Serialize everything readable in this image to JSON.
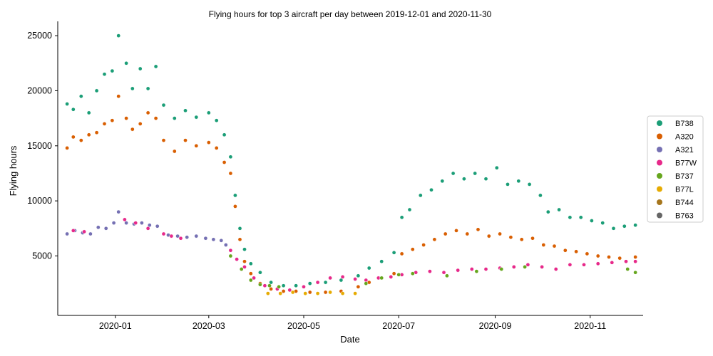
{
  "chart_data": {
    "type": "scatter",
    "title": "Flying hours for top 3 aircraft per day between 2019-12-01 and 2020-11-30",
    "xlabel": "Date",
    "ylabel": "Flying hours",
    "x_range": [
      "2019-11-25",
      "2020-12-05"
    ],
    "ylim": [
      -400,
      26300
    ],
    "x_ticks": [
      "2020-01-01",
      "2020-03-01",
      "2020-05-01",
      "2020-07-01",
      "2020-09-01",
      "2020-11-01"
    ],
    "x_tick_labels": [
      "2020-01",
      "2020-03",
      "2020-05",
      "2020-07",
      "2020-09",
      "2020-11"
    ],
    "y_ticks": [
      5000,
      10000,
      15000,
      20000,
      25000
    ],
    "y_tick_labels": [
      "5000",
      "10000",
      "15000",
      "20000",
      "25000"
    ],
    "grid": false,
    "legend_position": "right",
    "series": [
      {
        "name": "B738",
        "color": "#1b9e77",
        "points": [
          [
            "2019-12-01",
            18800
          ],
          [
            "2019-12-05",
            18300
          ],
          [
            "2019-12-10",
            19500
          ],
          [
            "2019-12-15",
            18000
          ],
          [
            "2019-12-20",
            20000
          ],
          [
            "2019-12-25",
            21500
          ],
          [
            "2019-12-30",
            21800
          ],
          [
            "2020-01-03",
            25000
          ],
          [
            "2020-01-08",
            22500
          ],
          [
            "2020-01-12",
            20200
          ],
          [
            "2020-01-17",
            22000
          ],
          [
            "2020-01-22",
            20200
          ],
          [
            "2020-01-27",
            22200
          ],
          [
            "2020-02-01",
            18700
          ],
          [
            "2020-02-08",
            17500
          ],
          [
            "2020-02-15",
            18200
          ],
          [
            "2020-02-22",
            17600
          ],
          [
            "2020-03-01",
            18000
          ],
          [
            "2020-03-06",
            17300
          ],
          [
            "2020-03-11",
            16000
          ],
          [
            "2020-03-15",
            14000
          ],
          [
            "2020-03-18",
            10500
          ],
          [
            "2020-03-21",
            7500
          ],
          [
            "2020-03-24",
            5600
          ],
          [
            "2020-03-28",
            4300
          ],
          [
            "2020-04-03",
            3500
          ],
          [
            "2020-04-10",
            2600
          ],
          [
            "2020-04-18",
            2300
          ],
          [
            "2020-04-26",
            2300
          ],
          [
            "2020-05-05",
            2500
          ],
          [
            "2020-05-15",
            2600
          ],
          [
            "2020-05-25",
            2800
          ],
          [
            "2020-06-05",
            3200
          ],
          [
            "2020-06-12",
            3900
          ],
          [
            "2020-06-20",
            4500
          ],
          [
            "2020-06-28",
            5300
          ],
          [
            "2020-07-03",
            8500
          ],
          [
            "2020-07-08",
            9200
          ],
          [
            "2020-07-15",
            10500
          ],
          [
            "2020-07-22",
            11000
          ],
          [
            "2020-07-29",
            11800
          ],
          [
            "2020-08-05",
            12500
          ],
          [
            "2020-08-12",
            12000
          ],
          [
            "2020-08-19",
            12500
          ],
          [
            "2020-08-26",
            12000
          ],
          [
            "2020-09-02",
            13000
          ],
          [
            "2020-09-09",
            11500
          ],
          [
            "2020-09-16",
            11800
          ],
          [
            "2020-09-23",
            11500
          ],
          [
            "2020-09-30",
            10500
          ],
          [
            "2020-10-05",
            9000
          ],
          [
            "2020-10-12",
            9200
          ],
          [
            "2020-10-19",
            8500
          ],
          [
            "2020-10-26",
            8500
          ],
          [
            "2020-11-02",
            8200
          ],
          [
            "2020-11-09",
            8000
          ],
          [
            "2020-11-16",
            7500
          ],
          [
            "2020-11-23",
            7700
          ],
          [
            "2020-11-30",
            7800
          ]
        ]
      },
      {
        "name": "A320",
        "color": "#d95f02",
        "points": [
          [
            "2019-12-01",
            14800
          ],
          [
            "2019-12-05",
            15800
          ],
          [
            "2019-12-10",
            15500
          ],
          [
            "2019-12-15",
            16000
          ],
          [
            "2019-12-20",
            16200
          ],
          [
            "2019-12-25",
            17000
          ],
          [
            "2019-12-30",
            17300
          ],
          [
            "2020-01-03",
            19500
          ],
          [
            "2020-01-08",
            17500
          ],
          [
            "2020-01-12",
            16500
          ],
          [
            "2020-01-17",
            17000
          ],
          [
            "2020-01-22",
            18000
          ],
          [
            "2020-01-27",
            17500
          ],
          [
            "2020-02-01",
            15500
          ],
          [
            "2020-02-08",
            14500
          ],
          [
            "2020-02-15",
            15500
          ],
          [
            "2020-02-22",
            15000
          ],
          [
            "2020-03-01",
            15300
          ],
          [
            "2020-03-06",
            14800
          ],
          [
            "2020-03-11",
            13500
          ],
          [
            "2020-03-15",
            12500
          ],
          [
            "2020-03-18",
            9500
          ],
          [
            "2020-03-21",
            6500
          ],
          [
            "2020-03-24",
            4500
          ],
          [
            "2020-03-28",
            3400
          ],
          [
            "2020-04-03",
            2500
          ],
          [
            "2020-04-10",
            2000
          ],
          [
            "2020-04-18",
            1800
          ],
          [
            "2020-04-26",
            1800
          ],
          [
            "2020-05-05",
            1700
          ],
          [
            "2020-05-15",
            1700
          ],
          [
            "2020-05-25",
            1800
          ],
          [
            "2020-06-05",
            2200
          ],
          [
            "2020-06-12",
            2600
          ],
          [
            "2020-06-20",
            3000
          ],
          [
            "2020-06-28",
            3400
          ],
          [
            "2020-07-03",
            5200
          ],
          [
            "2020-07-10",
            5600
          ],
          [
            "2020-07-17",
            6000
          ],
          [
            "2020-07-24",
            6500
          ],
          [
            "2020-07-31",
            7000
          ],
          [
            "2020-08-07",
            7300
          ],
          [
            "2020-08-14",
            7000
          ],
          [
            "2020-08-21",
            7400
          ],
          [
            "2020-08-28",
            6800
          ],
          [
            "2020-09-04",
            7000
          ],
          [
            "2020-09-11",
            6700
          ],
          [
            "2020-09-18",
            6500
          ],
          [
            "2020-09-25",
            6600
          ],
          [
            "2020-10-02",
            6000
          ],
          [
            "2020-10-09",
            5900
          ],
          [
            "2020-10-16",
            5500
          ],
          [
            "2020-10-23",
            5400
          ],
          [
            "2020-10-30",
            5200
          ],
          [
            "2020-11-06",
            5000
          ],
          [
            "2020-11-13",
            4900
          ],
          [
            "2020-11-20",
            4800
          ],
          [
            "2020-11-30",
            4900
          ]
        ]
      },
      {
        "name": "A321",
        "color": "#7570b3",
        "points": [
          [
            "2019-12-01",
            7000
          ],
          [
            "2019-12-06",
            7300
          ],
          [
            "2019-12-11",
            7100
          ],
          [
            "2019-12-16",
            7000
          ],
          [
            "2019-12-21",
            7600
          ],
          [
            "2019-12-26",
            7500
          ],
          [
            "2019-12-31",
            8000
          ],
          [
            "2020-01-03",
            9000
          ],
          [
            "2020-01-08",
            8000
          ],
          [
            "2020-01-13",
            7900
          ],
          [
            "2020-01-18",
            8000
          ],
          [
            "2020-01-23",
            7800
          ],
          [
            "2020-01-28",
            7700
          ],
          [
            "2020-02-04",
            6900
          ],
          [
            "2020-02-10",
            6800
          ],
          [
            "2020-02-16",
            6700
          ],
          [
            "2020-02-22",
            6800
          ],
          [
            "2020-02-28",
            6600
          ],
          [
            "2020-03-04",
            6500
          ],
          [
            "2020-03-09",
            6400
          ],
          [
            "2020-03-12",
            6000
          ]
        ]
      },
      {
        "name": "B77W",
        "color": "#e7298a",
        "points": [
          [
            "2019-12-05",
            7300
          ],
          [
            "2019-12-12",
            7200
          ],
          [
            "2020-01-07",
            8300
          ],
          [
            "2020-01-14",
            8000
          ],
          [
            "2020-01-22",
            7500
          ],
          [
            "2020-02-01",
            7000
          ],
          [
            "2020-02-06",
            6800
          ],
          [
            "2020-02-12",
            6600
          ],
          [
            "2020-03-15",
            5500
          ],
          [
            "2020-03-19",
            4700
          ],
          [
            "2020-03-24",
            4000
          ],
          [
            "2020-03-30",
            3000
          ],
          [
            "2020-04-06",
            2300
          ],
          [
            "2020-04-14",
            2000
          ],
          [
            "2020-04-22",
            1900
          ],
          [
            "2020-05-01",
            2200
          ],
          [
            "2020-05-10",
            2600
          ],
          [
            "2020-05-18",
            3000
          ],
          [
            "2020-05-26",
            3100
          ],
          [
            "2020-06-03",
            2900
          ],
          [
            "2020-06-10",
            2800
          ],
          [
            "2020-06-18",
            3000
          ],
          [
            "2020-06-26",
            3100
          ],
          [
            "2020-07-03",
            3300
          ],
          [
            "2020-07-12",
            3500
          ],
          [
            "2020-07-21",
            3600
          ],
          [
            "2020-07-30",
            3500
          ],
          [
            "2020-08-08",
            3700
          ],
          [
            "2020-08-17",
            3800
          ],
          [
            "2020-08-26",
            3800
          ],
          [
            "2020-09-04",
            3900
          ],
          [
            "2020-09-13",
            4000
          ],
          [
            "2020-09-22",
            4200
          ],
          [
            "2020-10-01",
            4000
          ],
          [
            "2020-10-10",
            3800
          ],
          [
            "2020-10-19",
            4200
          ],
          [
            "2020-10-28",
            4200
          ],
          [
            "2020-11-06",
            4300
          ],
          [
            "2020-11-15",
            4400
          ],
          [
            "2020-11-24",
            4500
          ],
          [
            "2020-11-30",
            4500
          ]
        ]
      },
      {
        "name": "B737",
        "color": "#66a61e",
        "points": [
          [
            "2020-03-15",
            5000
          ],
          [
            "2020-03-22",
            3800
          ],
          [
            "2020-03-28",
            2800
          ],
          [
            "2020-04-03",
            2400
          ],
          [
            "2020-04-09",
            2300
          ],
          [
            "2020-04-15",
            2200
          ],
          [
            "2020-06-10",
            2500
          ],
          [
            "2020-06-20",
            3000
          ],
          [
            "2020-07-01",
            3300
          ],
          [
            "2020-07-10",
            3400
          ],
          [
            "2020-08-01",
            3200
          ],
          [
            "2020-08-20",
            3600
          ],
          [
            "2020-09-05",
            3800
          ],
          [
            "2020-09-20",
            4000
          ],
          [
            "2020-11-25",
            3800
          ],
          [
            "2020-11-30",
            3500
          ]
        ]
      },
      {
        "name": "B77L",
        "color": "#e6ab02",
        "points": [
          [
            "2020-04-08",
            1600
          ],
          [
            "2020-04-16",
            1600
          ],
          [
            "2020-04-24",
            1700
          ],
          [
            "2020-05-02",
            1600
          ],
          [
            "2020-05-10",
            1600
          ],
          [
            "2020-05-18",
            1700
          ],
          [
            "2020-05-26",
            1600
          ],
          [
            "2020-06-03",
            1600
          ]
        ]
      },
      {
        "name": "B744",
        "color": "#a6761d",
        "points": []
      },
      {
        "name": "B763",
        "color": "#666666",
        "points": []
      }
    ]
  }
}
